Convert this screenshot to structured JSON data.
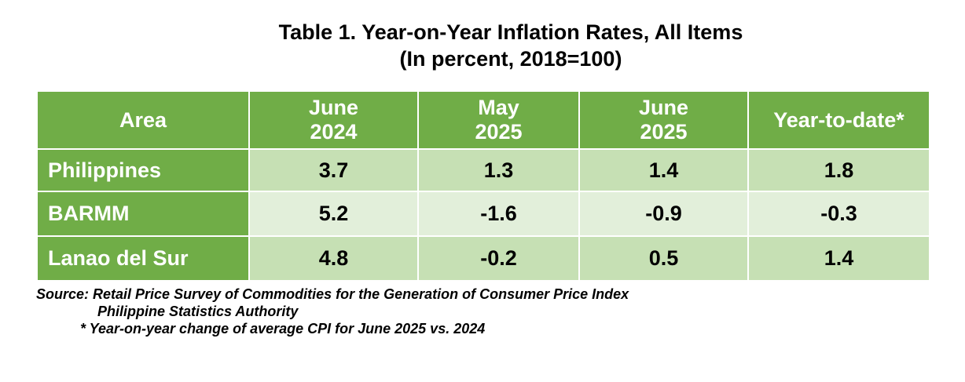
{
  "title": {
    "line1": "Table 1. Year-on-Year Inflation Rates, All Items",
    "line2": "(In percent, 2018=100)"
  },
  "chart_data": {
    "type": "table",
    "title": "Table 1. Year-on-Year Inflation Rates, All Items",
    "subtitle": "(In percent, 2018=100)",
    "columns": [
      {
        "line1": "Area",
        "line2": ""
      },
      {
        "line1": "June",
        "line2": "2024"
      },
      {
        "line1": "May",
        "line2": "2025"
      },
      {
        "line1": "June",
        "line2": "2025"
      },
      {
        "line1": "Year-to-date*",
        "line2": ""
      }
    ],
    "rows": [
      {
        "area": "Philippines",
        "values": [
          "3.7",
          "1.3",
          "1.4",
          "1.8"
        ]
      },
      {
        "area": "BARMM",
        "values": [
          "5.2",
          "-1.6",
          "-0.9",
          "-0.3"
        ]
      },
      {
        "area": "Lanao del Sur",
        "values": [
          "4.8",
          "-0.2",
          "0.5",
          "1.4"
        ]
      }
    ]
  },
  "notes": {
    "source_line1": "Source: Retail Price Survey of Commodities for the Generation of Consumer Price Index",
    "source_line2": "Philippine Statistics Authority",
    "footnote": "*  Year-on-year change of average CPI for June 2025 vs. 2024"
  },
  "colors": {
    "header_green": "#70ad47",
    "row_light": "#e2efda",
    "row_medium": "#c6e0b4"
  }
}
